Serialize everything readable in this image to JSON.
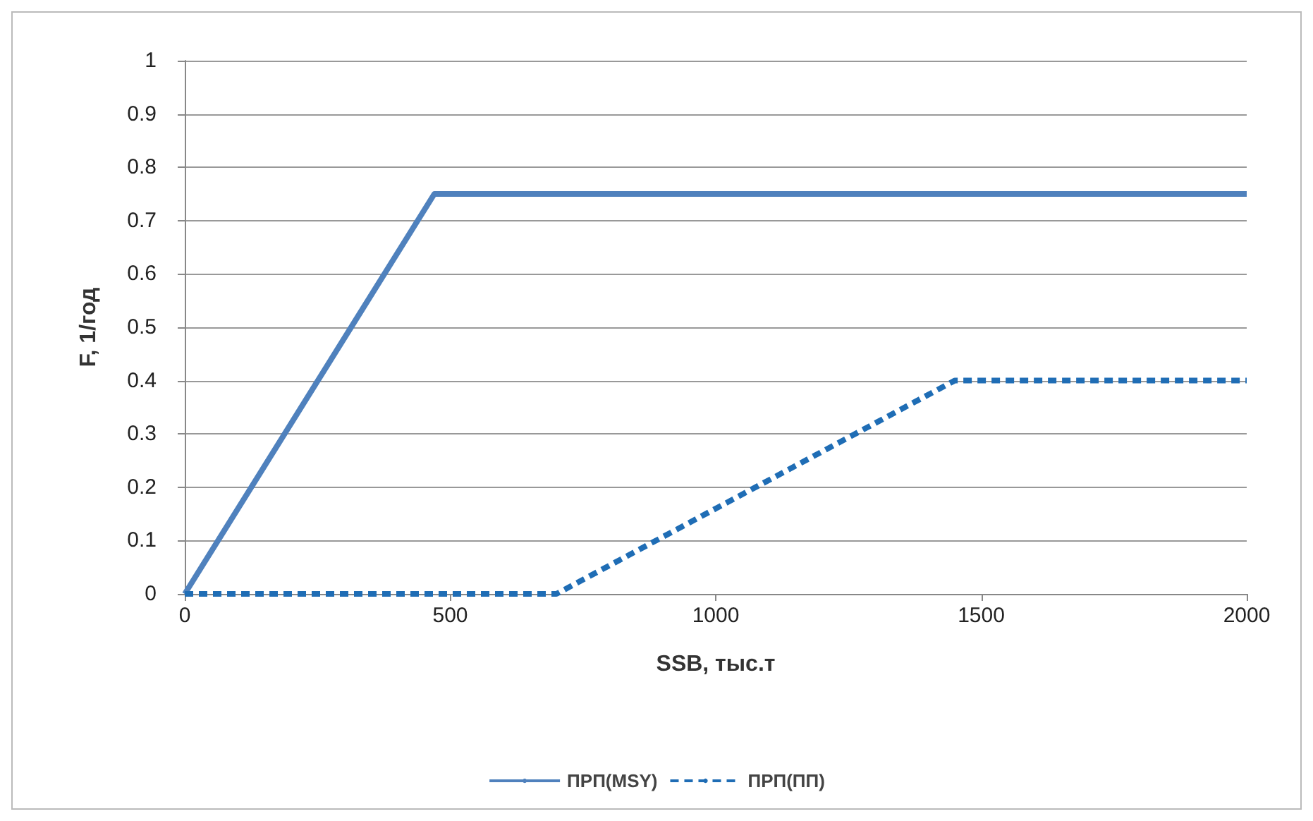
{
  "chart_data": {
    "type": "line",
    "xlabel": "SSB, тыс.т",
    "ylabel": "F, 1/год",
    "series": [
      {
        "name": "ПРП(MSY)",
        "color": "#4f81bd",
        "line_style": "solid",
        "x": [
          0,
          470,
          2000
        ],
        "values": [
          0,
          0.75,
          0.75
        ]
      },
      {
        "name": "ПРП(ПП)",
        "color": "#1f6db5",
        "line_style": "dashed",
        "x": [
          0,
          700,
          1450,
          2000
        ],
        "values": [
          0,
          0,
          0.4,
          0.4
        ]
      }
    ],
    "xlim": [
      0,
      2000
    ],
    "xticks": [
      0,
      500,
      1000,
      1500,
      2000
    ],
    "ylim": [
      0,
      1
    ],
    "yticks": [
      0,
      0.1,
      0.2,
      0.3,
      0.4,
      0.5,
      0.6,
      0.7,
      0.8,
      0.9,
      1
    ],
    "grid": "y",
    "legend": "bottom",
    "marker": "none"
  }
}
